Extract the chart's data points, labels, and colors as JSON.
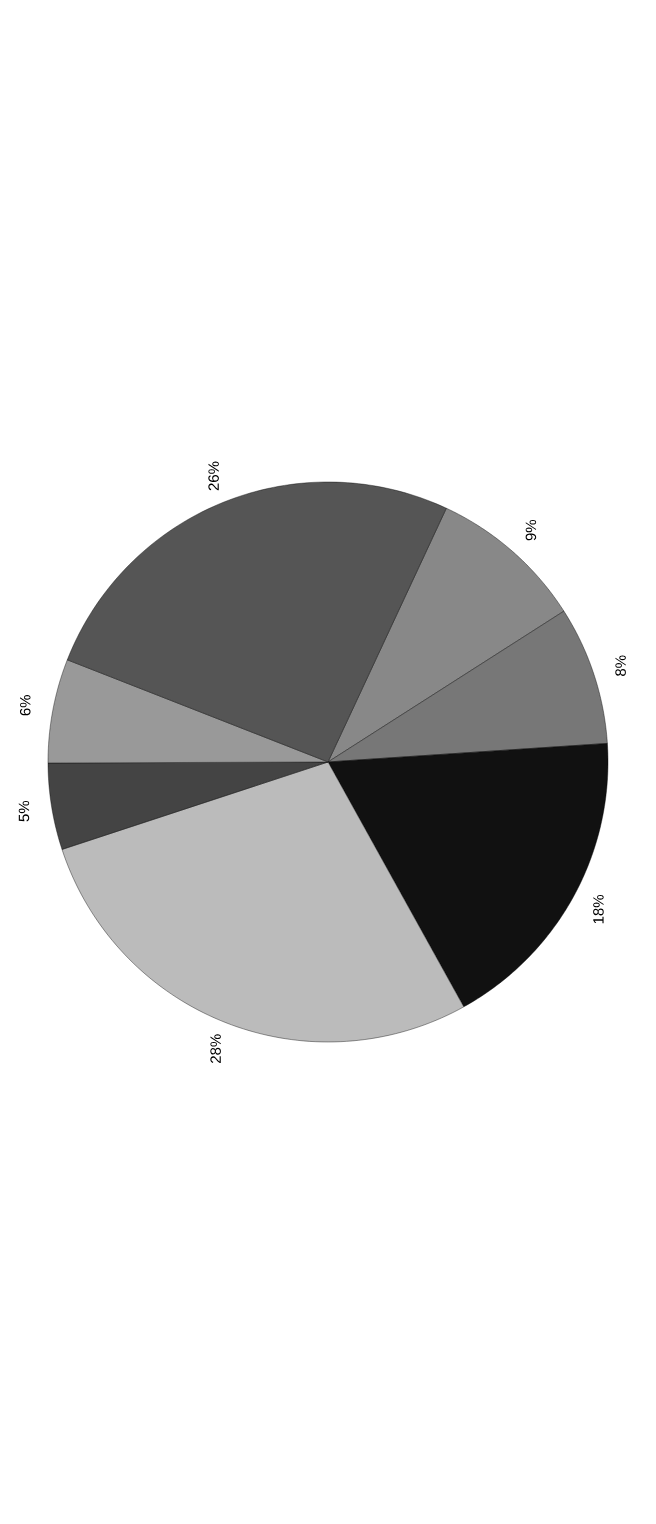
{
  "chart_data": {
    "type": "pie",
    "categories": [
      null,
      null,
      null,
      null,
      null,
      null,
      null
    ],
    "values": [
      9,
      8,
      18,
      28,
      5,
      6,
      26
    ],
    "value_labels": [
      "9%",
      "8%",
      "18%",
      "28%",
      "5%",
      "6%",
      "26%"
    ],
    "colors": [
      "#888888",
      "#777777",
      "#111111",
      "#bbbbbb",
      "#444444",
      "#999999",
      "#555555"
    ]
  }
}
